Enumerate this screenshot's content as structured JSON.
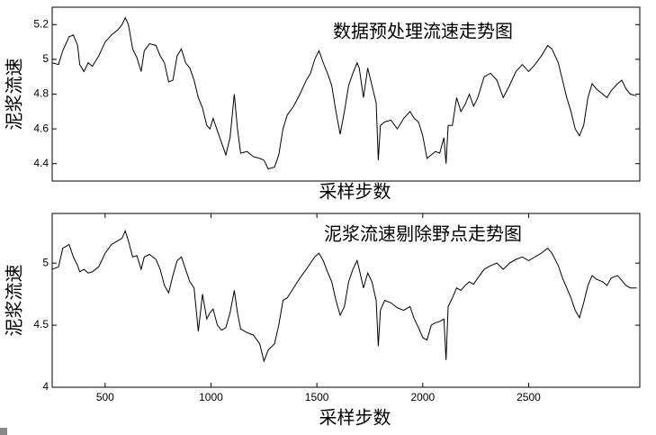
{
  "chart_data": [
    {
      "type": "line",
      "title": "数据预处理流速走势图",
      "xlabel": "采样步数",
      "ylabel": "泥浆流速",
      "color": "#000000",
      "xlim": [
        250,
        3025
      ],
      "ylim": [
        4.3,
        5.3
      ],
      "yticks": [
        4.4,
        4.6,
        4.8,
        5,
        5.2
      ],
      "x": [
        250,
        280,
        300,
        330,
        350,
        370,
        380,
        400,
        420,
        440,
        470,
        500,
        530,
        560,
        580,
        595,
        610,
        630,
        650,
        670,
        685,
        710,
        740,
        760,
        780,
        800,
        820,
        840,
        860,
        880,
        900,
        920,
        940,
        960,
        980,
        995,
        1010,
        1030,
        1050,
        1070,
        1090,
        1110,
        1125,
        1140,
        1170,
        1200,
        1230,
        1250,
        1270,
        1300,
        1320,
        1340,
        1360,
        1390,
        1420,
        1450,
        1470,
        1490,
        1510,
        1530,
        1550,
        1570,
        1590,
        1610,
        1630,
        1650,
        1670,
        1690,
        1700,
        1720,
        1740,
        1760,
        1780,
        1790,
        1800,
        1820,
        1850,
        1880,
        1910,
        1940,
        1960,
        1980,
        2000,
        2020,
        2040,
        2060,
        2080,
        2100,
        2110,
        2120,
        2140,
        2160,
        2180,
        2200,
        2220,
        2240,
        2260,
        2290,
        2320,
        2350,
        2380,
        2410,
        2440,
        2470,
        2500,
        2530,
        2560,
        2590,
        2610,
        2640,
        2660,
        2680,
        2700,
        2720,
        2740,
        2760,
        2780,
        2800,
        2820,
        2850,
        2870,
        2890,
        2920,
        2940,
        2960,
        2980,
        3010
      ],
      "values": [
        4.98,
        4.97,
        5.05,
        5.13,
        5.14,
        5.08,
        4.97,
        4.93,
        4.98,
        4.96,
        5.02,
        5.1,
        5.14,
        5.17,
        5.2,
        5.24,
        5.2,
        5.06,
        5.01,
        4.93,
        5.05,
        5.09,
        5.08,
        5.02,
        4.98,
        4.87,
        4.88,
        5.02,
        5.06,
        4.98,
        4.95,
        4.88,
        4.78,
        4.72,
        4.62,
        4.6,
        4.66,
        4.59,
        4.52,
        4.45,
        4.55,
        4.8,
        4.6,
        4.46,
        4.47,
        4.44,
        4.43,
        4.42,
        4.37,
        4.38,
        4.45,
        4.6,
        4.68,
        4.73,
        4.8,
        4.88,
        4.92,
        5.0,
        5.05,
        4.98,
        4.92,
        4.85,
        4.7,
        4.57,
        4.7,
        4.85,
        4.92,
        4.98,
        4.95,
        4.78,
        4.95,
        4.85,
        4.75,
        4.42,
        4.62,
        4.64,
        4.65,
        4.6,
        4.66,
        4.7,
        4.66,
        4.64,
        4.56,
        4.43,
        4.45,
        4.47,
        4.46,
        4.55,
        4.4,
        4.62,
        4.62,
        4.78,
        4.7,
        4.74,
        4.8,
        4.73,
        4.78,
        4.9,
        4.92,
        4.88,
        4.78,
        4.85,
        4.93,
        4.97,
        4.93,
        4.97,
        5.02,
        5.08,
        5.06,
        4.98,
        4.88,
        4.78,
        4.7,
        4.6,
        4.56,
        4.62,
        4.78,
        4.86,
        4.83,
        4.8,
        4.78,
        4.82,
        4.86,
        4.88,
        4.83,
        4.8,
        4.79
      ]
    },
    {
      "type": "line",
      "title": "泥浆流速剔除野点走势图",
      "xlabel": "采样步数",
      "ylabel": "泥浆流速",
      "color": "#000000",
      "xlim": [
        250,
        3025
      ],
      "ylim": [
        4,
        5.4
      ],
      "yticks": [
        4,
        4.5,
        5
      ],
      "xticks": [
        500,
        1000,
        1500,
        2000,
        2500
      ],
      "x": [
        250,
        280,
        300,
        330,
        350,
        370,
        380,
        400,
        420,
        440,
        470,
        500,
        530,
        560,
        580,
        595,
        610,
        630,
        650,
        670,
        685,
        710,
        740,
        760,
        780,
        800,
        820,
        840,
        860,
        880,
        900,
        920,
        940,
        960,
        980,
        995,
        1010,
        1030,
        1050,
        1070,
        1090,
        1110,
        1125,
        1140,
        1170,
        1200,
        1230,
        1250,
        1270,
        1300,
        1320,
        1340,
        1360,
        1390,
        1420,
        1450,
        1470,
        1490,
        1510,
        1530,
        1550,
        1570,
        1590,
        1610,
        1630,
        1650,
        1670,
        1690,
        1700,
        1720,
        1740,
        1760,
        1780,
        1790,
        1800,
        1820,
        1850,
        1880,
        1910,
        1940,
        1960,
        1980,
        2000,
        2020,
        2040,
        2060,
        2080,
        2100,
        2110,
        2120,
        2140,
        2160,
        2180,
        2200,
        2220,
        2240,
        2260,
        2290,
        2320,
        2350,
        2380,
        2410,
        2440,
        2470,
        2500,
        2530,
        2560,
        2590,
        2610,
        2640,
        2660,
        2680,
        2700,
        2720,
        2740,
        2760,
        2780,
        2800,
        2820,
        2850,
        2870,
        2890,
        2920,
        2940,
        2960,
        2980,
        3010
      ],
      "values": [
        4.95,
        4.97,
        5.12,
        5.15,
        5.05,
        4.98,
        4.93,
        4.95,
        4.92,
        4.93,
        4.97,
        5.08,
        5.15,
        5.18,
        5.2,
        5.26,
        5.18,
        5.05,
        5.06,
        4.95,
        5.05,
        5.07,
        5.03,
        4.95,
        4.82,
        4.76,
        4.9,
        5.02,
        5.05,
        4.95,
        4.85,
        4.8,
        4.45,
        4.75,
        4.55,
        4.6,
        4.63,
        4.5,
        4.46,
        4.48,
        4.6,
        4.78,
        4.6,
        4.47,
        4.44,
        4.42,
        4.35,
        4.21,
        4.3,
        4.35,
        4.5,
        4.7,
        4.72,
        4.8,
        4.88,
        4.95,
        5.0,
        5.05,
        5.08,
        5.02,
        4.93,
        4.85,
        4.7,
        4.58,
        4.65,
        4.85,
        4.95,
        5.02,
        4.95,
        4.8,
        4.92,
        4.85,
        4.7,
        4.33,
        4.62,
        4.7,
        4.68,
        4.64,
        4.62,
        4.65,
        4.55,
        4.48,
        4.4,
        4.38,
        4.5,
        4.52,
        4.53,
        4.55,
        4.22,
        4.65,
        4.72,
        4.8,
        4.78,
        4.82,
        4.85,
        4.83,
        4.88,
        4.95,
        4.98,
        5.0,
        4.95,
        5.0,
        5.03,
        5.05,
        5.02,
        5.05,
        5.08,
        5.12,
        5.08,
        4.98,
        4.88,
        4.8,
        4.72,
        4.62,
        4.56,
        4.68,
        4.82,
        4.9,
        4.87,
        4.85,
        4.82,
        4.88,
        4.9,
        4.86,
        4.82,
        4.8,
        4.8
      ]
    }
  ]
}
